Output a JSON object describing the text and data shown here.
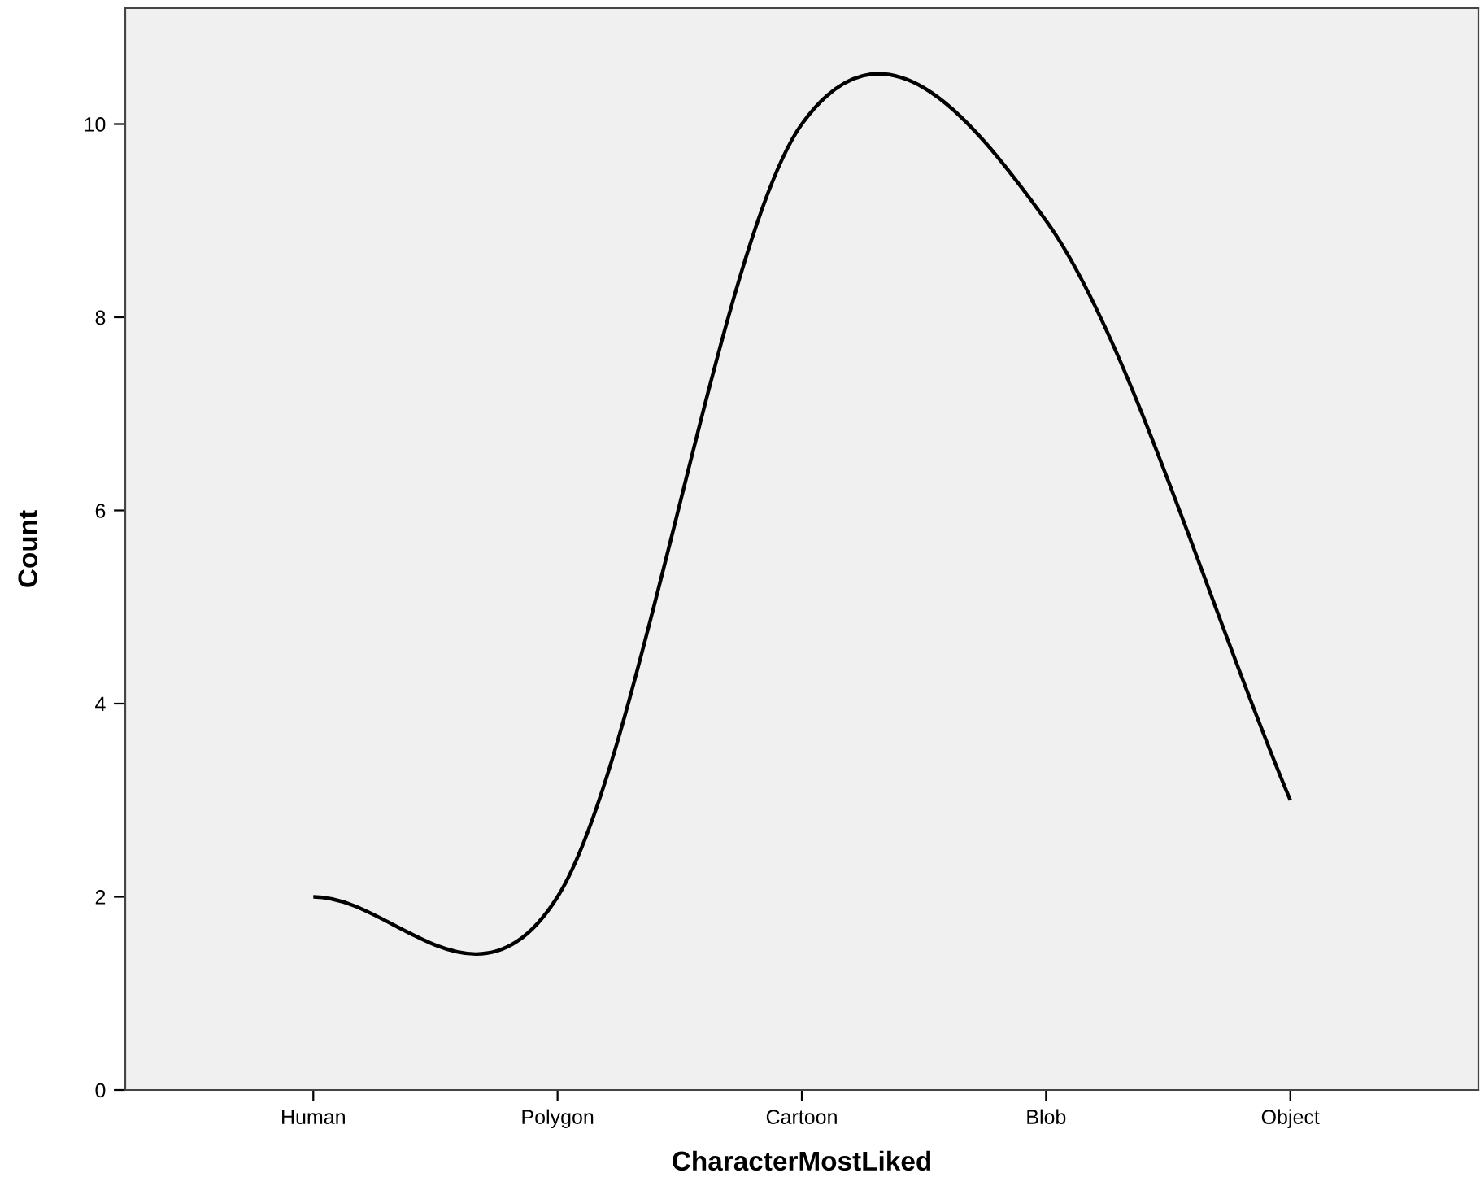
{
  "chart_data": {
    "type": "line",
    "xlabel": "CharacterMostLiked",
    "ylabel": "Count",
    "categories": [
      "Human",
      "Polygon",
      "Cartoon",
      "Blob",
      "Object"
    ],
    "series": [
      {
        "color": "#000000",
        "values": [
          2,
          2,
          10,
          9,
          3
        ]
      }
    ],
    "ylim": [
      0,
      11.2
    ],
    "yticks": [
      0,
      2,
      4,
      6,
      8,
      10
    ],
    "grid": false,
    "legend": false,
    "marker": "none",
    "line_style": "solid"
  }
}
